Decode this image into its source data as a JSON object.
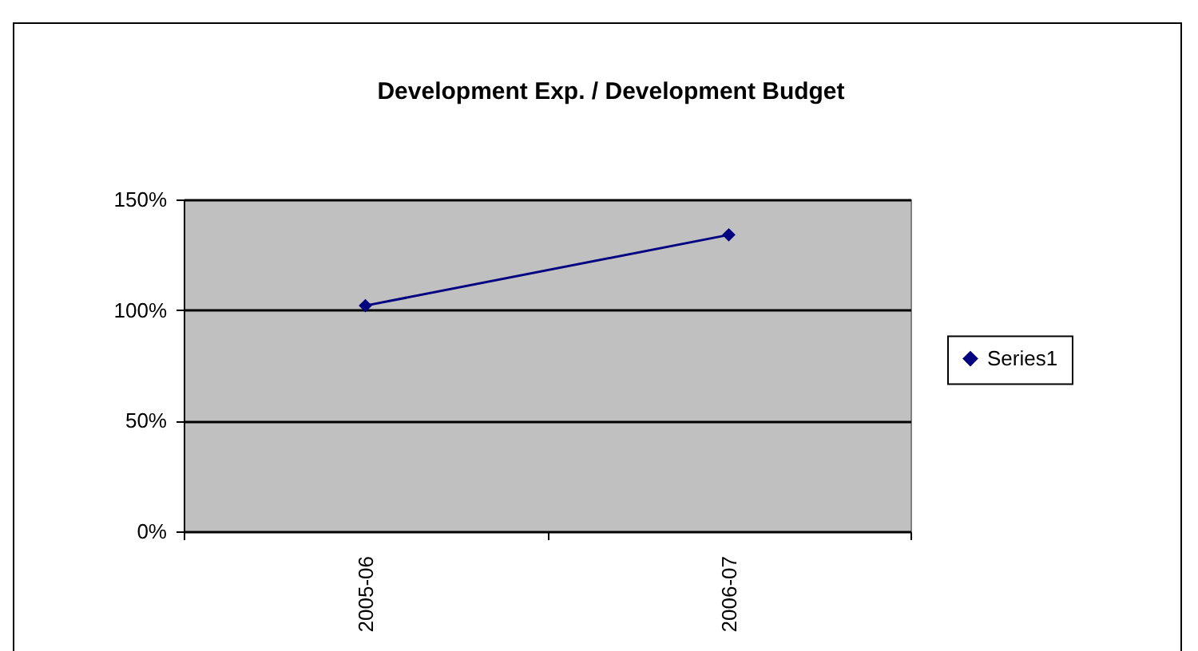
{
  "chart_data": {
    "type": "line",
    "title": "Development Exp. / Development Budget",
    "categories": [
      "2005-06",
      "2006-07"
    ],
    "series": [
      {
        "name": "Series1",
        "color": "#000080",
        "values": [
          102,
          134
        ]
      }
    ],
    "ylim": [
      0,
      150
    ],
    "yticks": [
      {
        "value": 0,
        "label": "0%"
      },
      {
        "value": 50,
        "label": "50%"
      },
      {
        "value": 100,
        "label": "100%"
      },
      {
        "value": 150,
        "label": "150%"
      }
    ],
    "grid": "y",
    "legend": "right",
    "marker": "diamond",
    "line_style": "solid"
  }
}
